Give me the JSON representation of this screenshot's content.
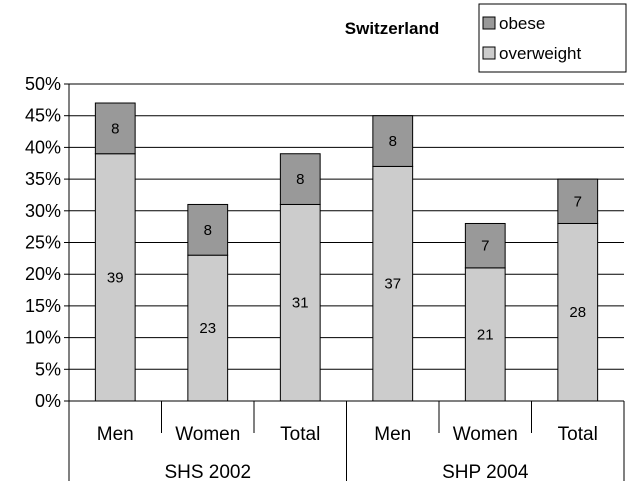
{
  "chart_data": {
    "type": "bar",
    "stacked": true,
    "title": "Switzerland",
    "xlabel": "",
    "ylabel": "",
    "ylim": [
      0,
      50
    ],
    "y_tick_labels": [
      "0%",
      "5%",
      "10%",
      "15%",
      "20%",
      "25%",
      "30%",
      "35%",
      "40%",
      "45%",
      "50%"
    ],
    "categories": [
      "Men",
      "Women",
      "Total",
      "Men",
      "Women",
      "Total"
    ],
    "groups": [
      {
        "label": "SHS 2002",
        "span": [
          0,
          2
        ]
      },
      {
        "label": "SHP 2004",
        "span": [
          3,
          5
        ]
      }
    ],
    "series": [
      {
        "name": "overweight",
        "values": [
          39,
          23,
          31,
          37,
          21,
          28
        ],
        "color": "#cccccc"
      },
      {
        "name": "obese",
        "values": [
          8,
          8,
          8,
          8,
          7,
          7
        ],
        "color": "#999999"
      }
    ],
    "legend_order": [
      "obese",
      "overweight"
    ],
    "legend_position": "top-right",
    "grid": true
  }
}
